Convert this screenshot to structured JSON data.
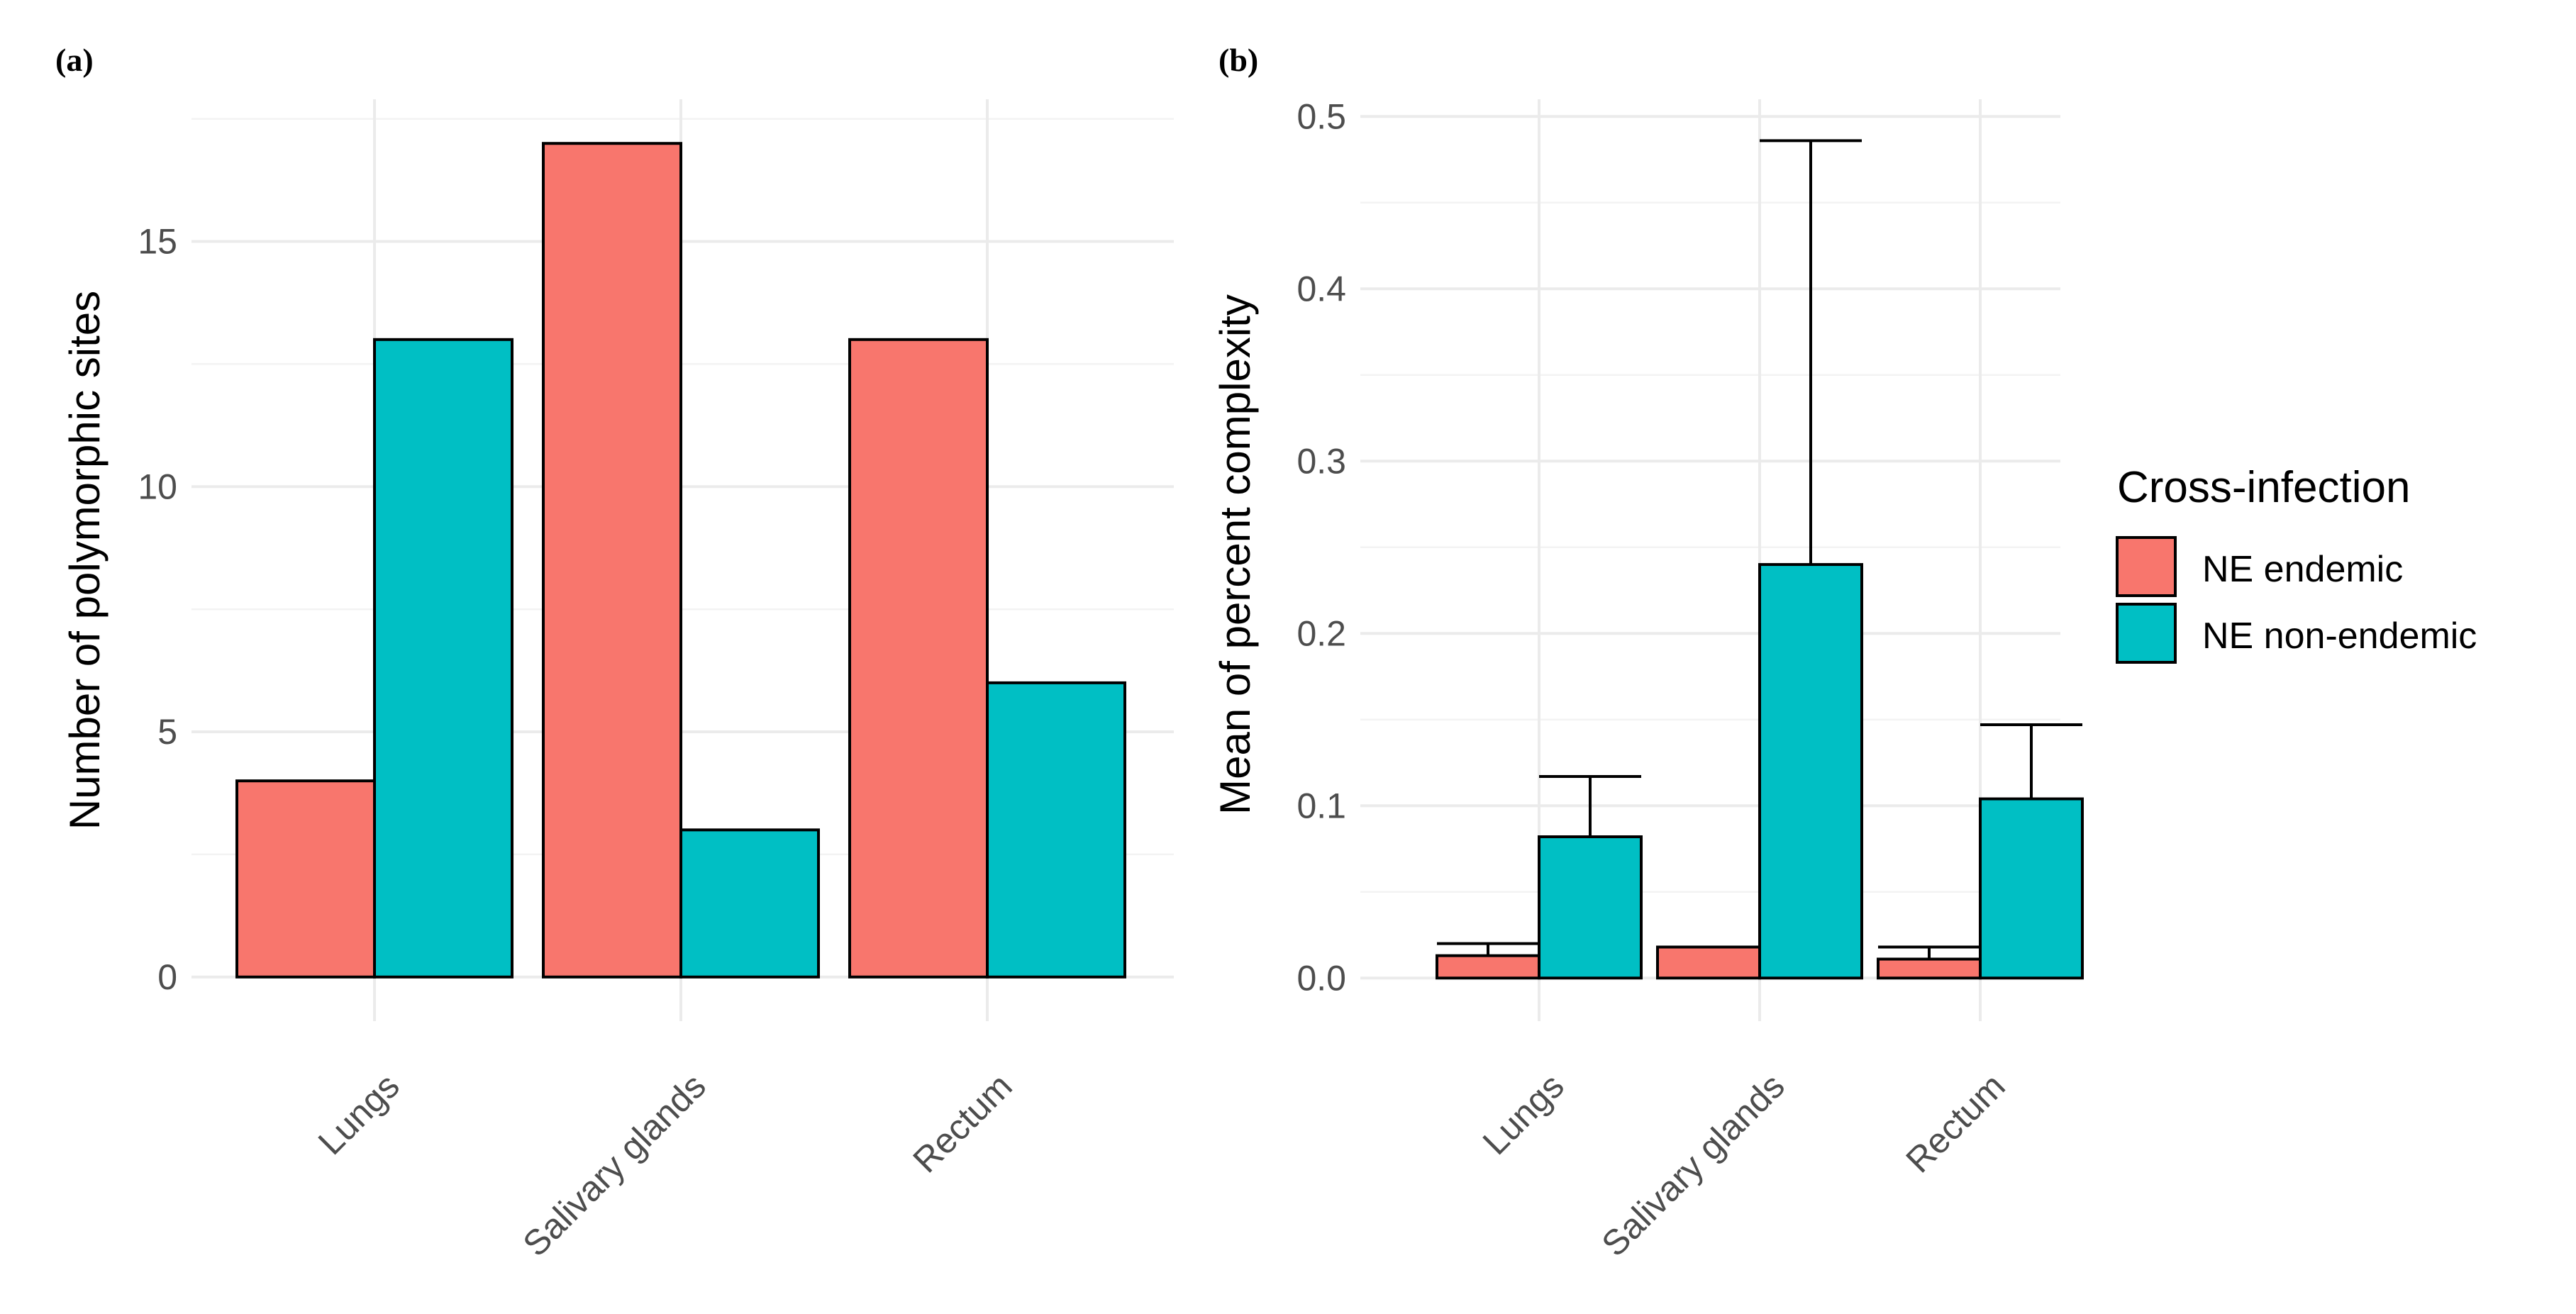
{
  "figure": {
    "legend": {
      "title": "Cross-infection",
      "entries": [
        {
          "label": "NE endemic",
          "color": "#F8766D"
        },
        {
          "label": "NE non-endemic",
          "color": "#00BFC4"
        }
      ]
    }
  },
  "chart_data": [
    {
      "panel": "(a)",
      "type": "bar",
      "title": "",
      "xlabel": "",
      "ylabel": "Number of polymorphic sites",
      "categories": [
        "Lungs",
        "Salivary glands",
        "Rectum"
      ],
      "series": [
        {
          "name": "NE endemic",
          "color": "#F8766D",
          "values": [
            4,
            17,
            13
          ]
        },
        {
          "name": "NE non-endemic",
          "color": "#00BFC4",
          "values": [
            13,
            3,
            6
          ]
        }
      ],
      "ylim": [
        -0.9,
        17.9
      ],
      "yticks": [
        0,
        5,
        10,
        15
      ],
      "ytick_labels": [
        "0",
        "5",
        "10",
        "15"
      ],
      "grid": true
    },
    {
      "panel": "(b)",
      "type": "bar",
      "title": "",
      "xlabel": "",
      "ylabel": "Mean of percent complexity",
      "categories": [
        "Lungs",
        "Salivary glands",
        "Rectum"
      ],
      "series": [
        {
          "name": "NE endemic",
          "color": "#F8766D",
          "values": [
            0.013,
            0.018,
            0.011
          ],
          "error_upper": [
            0.02,
            null,
            0.018
          ]
        },
        {
          "name": "NE non-endemic",
          "color": "#00BFC4",
          "values": [
            0.082,
            0.24,
            0.104
          ],
          "error_upper": [
            0.117,
            0.486,
            0.147
          ]
        }
      ],
      "ylim": [
        -0.025,
        0.51
      ],
      "yticks": [
        0.0,
        0.1,
        0.2,
        0.3,
        0.4,
        0.5
      ],
      "ytick_labels": [
        "0.0",
        "0.1",
        "0.2",
        "0.3",
        "0.4",
        "0.5"
      ],
      "grid": true
    }
  ]
}
